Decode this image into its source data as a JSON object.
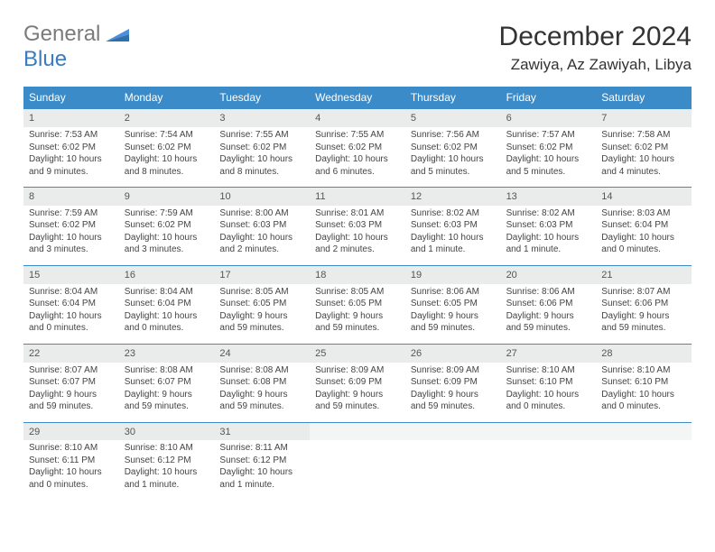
{
  "brand": {
    "part1": "General",
    "part2": "Blue"
  },
  "title": "December 2024",
  "location": "Zawiya, Az Zawiyah, Libya",
  "colors": {
    "header_bg": "#3b8bc9",
    "header_text": "#ffffff",
    "daynum_bg": "#e9eceb",
    "border": "#3b8bc9",
    "logo_gray": "#7b7b7b",
    "logo_blue": "#3b7bbf"
  },
  "weekdays": [
    "Sunday",
    "Monday",
    "Tuesday",
    "Wednesday",
    "Thursday",
    "Friday",
    "Saturday"
  ],
  "weeks": [
    [
      {
        "n": "1",
        "sunrise": "Sunrise: 7:53 AM",
        "sunset": "Sunset: 6:02 PM",
        "d1": "Daylight: 10 hours",
        "d2": "and 9 minutes."
      },
      {
        "n": "2",
        "sunrise": "Sunrise: 7:54 AM",
        "sunset": "Sunset: 6:02 PM",
        "d1": "Daylight: 10 hours",
        "d2": "and 8 minutes."
      },
      {
        "n": "3",
        "sunrise": "Sunrise: 7:55 AM",
        "sunset": "Sunset: 6:02 PM",
        "d1": "Daylight: 10 hours",
        "d2": "and 8 minutes."
      },
      {
        "n": "4",
        "sunrise": "Sunrise: 7:55 AM",
        "sunset": "Sunset: 6:02 PM",
        "d1": "Daylight: 10 hours",
        "d2": "and 6 minutes."
      },
      {
        "n": "5",
        "sunrise": "Sunrise: 7:56 AM",
        "sunset": "Sunset: 6:02 PM",
        "d1": "Daylight: 10 hours",
        "d2": "and 5 minutes."
      },
      {
        "n": "6",
        "sunrise": "Sunrise: 7:57 AM",
        "sunset": "Sunset: 6:02 PM",
        "d1": "Daylight: 10 hours",
        "d2": "and 5 minutes."
      },
      {
        "n": "7",
        "sunrise": "Sunrise: 7:58 AM",
        "sunset": "Sunset: 6:02 PM",
        "d1": "Daylight: 10 hours",
        "d2": "and 4 minutes."
      }
    ],
    [
      {
        "n": "8",
        "sunrise": "Sunrise: 7:59 AM",
        "sunset": "Sunset: 6:02 PM",
        "d1": "Daylight: 10 hours",
        "d2": "and 3 minutes."
      },
      {
        "n": "9",
        "sunrise": "Sunrise: 7:59 AM",
        "sunset": "Sunset: 6:02 PM",
        "d1": "Daylight: 10 hours",
        "d2": "and 3 minutes."
      },
      {
        "n": "10",
        "sunrise": "Sunrise: 8:00 AM",
        "sunset": "Sunset: 6:03 PM",
        "d1": "Daylight: 10 hours",
        "d2": "and 2 minutes."
      },
      {
        "n": "11",
        "sunrise": "Sunrise: 8:01 AM",
        "sunset": "Sunset: 6:03 PM",
        "d1": "Daylight: 10 hours",
        "d2": "and 2 minutes."
      },
      {
        "n": "12",
        "sunrise": "Sunrise: 8:02 AM",
        "sunset": "Sunset: 6:03 PM",
        "d1": "Daylight: 10 hours",
        "d2": "and 1 minute."
      },
      {
        "n": "13",
        "sunrise": "Sunrise: 8:02 AM",
        "sunset": "Sunset: 6:03 PM",
        "d1": "Daylight: 10 hours",
        "d2": "and 1 minute."
      },
      {
        "n": "14",
        "sunrise": "Sunrise: 8:03 AM",
        "sunset": "Sunset: 6:04 PM",
        "d1": "Daylight: 10 hours",
        "d2": "and 0 minutes."
      }
    ],
    [
      {
        "n": "15",
        "sunrise": "Sunrise: 8:04 AM",
        "sunset": "Sunset: 6:04 PM",
        "d1": "Daylight: 10 hours",
        "d2": "and 0 minutes."
      },
      {
        "n": "16",
        "sunrise": "Sunrise: 8:04 AM",
        "sunset": "Sunset: 6:04 PM",
        "d1": "Daylight: 10 hours",
        "d2": "and 0 minutes."
      },
      {
        "n": "17",
        "sunrise": "Sunrise: 8:05 AM",
        "sunset": "Sunset: 6:05 PM",
        "d1": "Daylight: 9 hours",
        "d2": "and 59 minutes."
      },
      {
        "n": "18",
        "sunrise": "Sunrise: 8:05 AM",
        "sunset": "Sunset: 6:05 PM",
        "d1": "Daylight: 9 hours",
        "d2": "and 59 minutes."
      },
      {
        "n": "19",
        "sunrise": "Sunrise: 8:06 AM",
        "sunset": "Sunset: 6:05 PM",
        "d1": "Daylight: 9 hours",
        "d2": "and 59 minutes."
      },
      {
        "n": "20",
        "sunrise": "Sunrise: 8:06 AM",
        "sunset": "Sunset: 6:06 PM",
        "d1": "Daylight: 9 hours",
        "d2": "and 59 minutes."
      },
      {
        "n": "21",
        "sunrise": "Sunrise: 8:07 AM",
        "sunset": "Sunset: 6:06 PM",
        "d1": "Daylight: 9 hours",
        "d2": "and 59 minutes."
      }
    ],
    [
      {
        "n": "22",
        "sunrise": "Sunrise: 8:07 AM",
        "sunset": "Sunset: 6:07 PM",
        "d1": "Daylight: 9 hours",
        "d2": "and 59 minutes."
      },
      {
        "n": "23",
        "sunrise": "Sunrise: 8:08 AM",
        "sunset": "Sunset: 6:07 PM",
        "d1": "Daylight: 9 hours",
        "d2": "and 59 minutes."
      },
      {
        "n": "24",
        "sunrise": "Sunrise: 8:08 AM",
        "sunset": "Sunset: 6:08 PM",
        "d1": "Daylight: 9 hours",
        "d2": "and 59 minutes."
      },
      {
        "n": "25",
        "sunrise": "Sunrise: 8:09 AM",
        "sunset": "Sunset: 6:09 PM",
        "d1": "Daylight: 9 hours",
        "d2": "and 59 minutes."
      },
      {
        "n": "26",
        "sunrise": "Sunrise: 8:09 AM",
        "sunset": "Sunset: 6:09 PM",
        "d1": "Daylight: 9 hours",
        "d2": "and 59 minutes."
      },
      {
        "n": "27",
        "sunrise": "Sunrise: 8:10 AM",
        "sunset": "Sunset: 6:10 PM",
        "d1": "Daylight: 10 hours",
        "d2": "and 0 minutes."
      },
      {
        "n": "28",
        "sunrise": "Sunrise: 8:10 AM",
        "sunset": "Sunset: 6:10 PM",
        "d1": "Daylight: 10 hours",
        "d2": "and 0 minutes."
      }
    ],
    [
      {
        "n": "29",
        "sunrise": "Sunrise: 8:10 AM",
        "sunset": "Sunset: 6:11 PM",
        "d1": "Daylight: 10 hours",
        "d2": "and 0 minutes."
      },
      {
        "n": "30",
        "sunrise": "Sunrise: 8:10 AM",
        "sunset": "Sunset: 6:12 PM",
        "d1": "Daylight: 10 hours",
        "d2": "and 1 minute."
      },
      {
        "n": "31",
        "sunrise": "Sunrise: 8:11 AM",
        "sunset": "Sunset: 6:12 PM",
        "d1": "Daylight: 10 hours",
        "d2": "and 1 minute."
      },
      null,
      null,
      null,
      null
    ]
  ]
}
